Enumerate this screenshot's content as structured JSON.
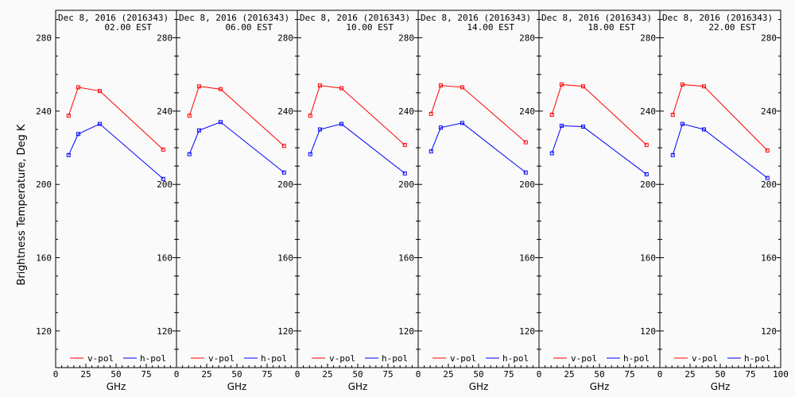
{
  "chart_data": {
    "type": "line",
    "ylabel": "Brightness Temperature, Deg K",
    "xlabel": "GHz",
    "xlim": [
      0,
      100
    ],
    "ylim": [
      100,
      295
    ],
    "x_ticks": [
      0,
      25,
      50,
      75,
      100
    ],
    "y_ticks": [
      120,
      160,
      200,
      240,
      280
    ],
    "legend": [
      "v-pol",
      "h-pol"
    ],
    "legend_position": "bottom",
    "colors": {
      "v-pol": "#ff0000",
      "h-pol": "#0000ff"
    },
    "panels": [
      {
        "date": "Dec  8, 2016 (2016343)",
        "time": "02.00 EST",
        "series": [
          {
            "name": "v-pol",
            "x": [
              10.7,
              18.7,
              36.5,
              89.0
            ],
            "y": [
              237.5,
              253.0,
              251.0,
              219.0
            ]
          },
          {
            "name": "h-pol",
            "x": [
              10.7,
              18.7,
              36.5,
              89.0
            ],
            "y": [
              216.0,
              227.5,
              233.0,
              203.0
            ]
          }
        ]
      },
      {
        "date": "Dec  8, 2016 (2016343)",
        "time": "06.00 EST",
        "series": [
          {
            "name": "v-pol",
            "x": [
              10.7,
              18.7,
              36.5,
              89.0
            ],
            "y": [
              237.5,
              253.5,
              252.0,
              221.0
            ]
          },
          {
            "name": "h-pol",
            "x": [
              10.7,
              18.7,
              36.5,
              89.0
            ],
            "y": [
              216.5,
              229.5,
              234.0,
              206.5
            ]
          }
        ]
      },
      {
        "date": "Dec  8, 2016 (2016343)",
        "time": "10.00 EST",
        "series": [
          {
            "name": "v-pol",
            "x": [
              10.7,
              18.7,
              36.5,
              89.0
            ],
            "y": [
              237.5,
              254.0,
              252.5,
              221.5
            ]
          },
          {
            "name": "h-pol",
            "x": [
              10.7,
              18.7,
              36.5,
              89.0
            ],
            "y": [
              216.5,
              230.0,
              233.0,
              206.0
            ]
          }
        ]
      },
      {
        "date": "Dec  8, 2016 (2016343)",
        "time": "14.00 EST",
        "series": [
          {
            "name": "v-pol",
            "x": [
              10.7,
              18.7,
              36.5,
              89.0
            ],
            "y": [
              238.5,
              254.0,
              253.0,
              223.0
            ]
          },
          {
            "name": "h-pol",
            "x": [
              10.7,
              18.7,
              36.5,
              89.0
            ],
            "y": [
              218.0,
              231.0,
              233.5,
              206.5
            ]
          }
        ]
      },
      {
        "date": "Dec  8, 2016 (2016343)",
        "time": "18.00 EST",
        "series": [
          {
            "name": "v-pol",
            "x": [
              10.7,
              18.7,
              36.5,
              89.0
            ],
            "y": [
              238.0,
              254.5,
              253.5,
              221.5
            ]
          },
          {
            "name": "h-pol",
            "x": [
              10.7,
              18.7,
              36.5,
              89.0
            ],
            "y": [
              217.0,
              232.0,
              231.5,
              205.5
            ]
          }
        ]
      },
      {
        "date": "Dec  8, 2016 (2016343)",
        "time": "22.00 EST",
        "series": [
          {
            "name": "v-pol",
            "x": [
              10.7,
              18.7,
              36.5,
              89.0
            ],
            "y": [
              238.0,
              254.5,
              253.5,
              218.5
            ]
          },
          {
            "name": "h-pol",
            "x": [
              10.7,
              18.7,
              36.5,
              89.0
            ],
            "y": [
              216.0,
              233.0,
              230.0,
              203.5
            ]
          }
        ]
      }
    ]
  }
}
